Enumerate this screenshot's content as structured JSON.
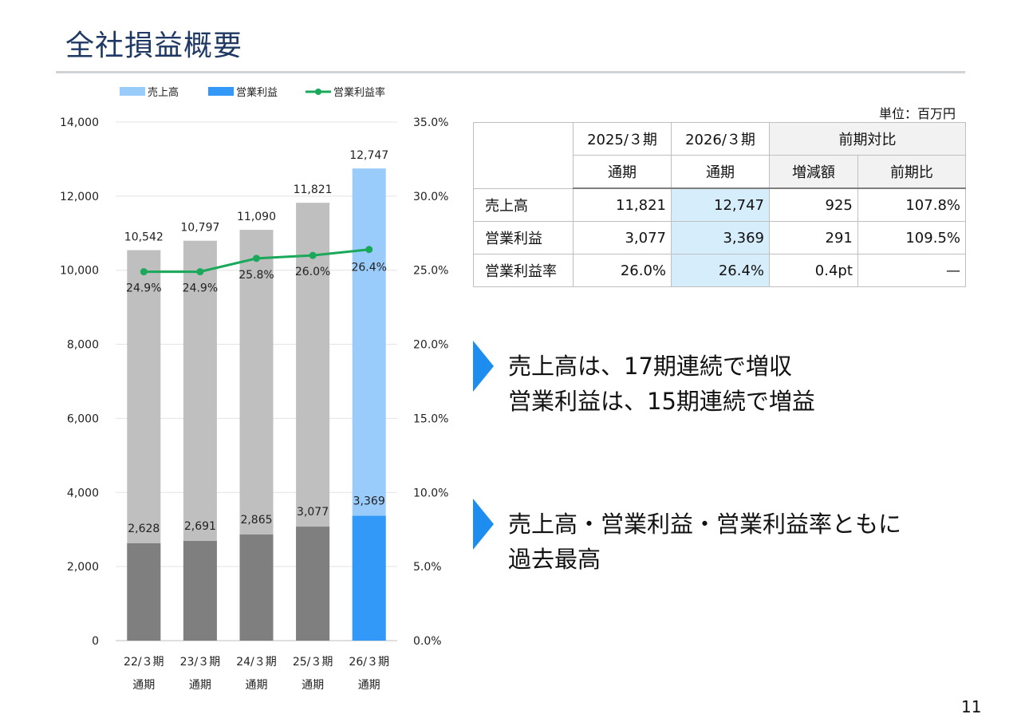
{
  "page": {
    "title": "全社損益概要",
    "page_number": "11"
  },
  "colors": {
    "title": "#1f3864",
    "revenue_past": "#bfbfbf",
    "op_income_past": "#7f7f7f",
    "revenue_current": "#99ccfa",
    "op_income_current": "#3399f8",
    "margin_line": "#1aa85a",
    "arrow": "#1e8df0",
    "highlight_cell": "#d6edfb"
  },
  "chart_data": {
    "type": "bar",
    "legend": [
      "売上高",
      "営業利益",
      "営業利益率"
    ],
    "legend_position": "top",
    "categories": [
      "22/３期",
      "23/３期",
      "24/３期",
      "25/３期",
      "26/３期"
    ],
    "category_sub": [
      "通期",
      "通期",
      "通期",
      "通期",
      "通期"
    ],
    "series": [
      {
        "name": "売上高",
        "values": [
          10542,
          10797,
          11090,
          11821,
          12747
        ],
        "labels": [
          "10,542",
          "10,797",
          "11,090",
          "11,821",
          "12,747"
        ]
      },
      {
        "name": "営業利益",
        "values": [
          2628,
          2691,
          2865,
          3077,
          3369
        ],
        "labels": [
          "2,628",
          "2,691",
          "2,865",
          "3,077",
          "3,369"
        ]
      },
      {
        "name": "営業利益率",
        "type": "line",
        "axis": "right",
        "values": [
          24.9,
          24.9,
          25.8,
          26.0,
          26.4
        ],
        "labels": [
          "24.9%",
          "24.9%",
          "25.8%",
          "26.0%",
          "26.4%"
        ]
      }
    ],
    "highlight_index": 4,
    "ylim": [
      0,
      14000
    ],
    "y_ticks": [
      "0",
      "2,000",
      "4,000",
      "6,000",
      "8,000",
      "10,000",
      "12,000",
      "14,000"
    ],
    "y2lim": [
      0,
      35
    ],
    "y2_ticks": [
      "0.0%",
      "5.0%",
      "10.0%",
      "15.0%",
      "20.0%",
      "25.0%",
      "30.0%",
      "35.0%"
    ],
    "grid": true
  },
  "table": {
    "unit": "単位：百万円",
    "headers": [
      "2025/３期",
      "2026/３期",
      "前期対比"
    ],
    "subheaders": [
      "通期",
      "通期",
      "増減額",
      "前期比"
    ],
    "rows": [
      {
        "label": "売上高",
        "prev": "11,821",
        "curr": "12,747",
        "diff": "925",
        "ratio": "107.8%"
      },
      {
        "label": "営業利益",
        "prev": "3,077",
        "curr": "3,369",
        "diff": "291",
        "ratio": "109.5%"
      },
      {
        "label": "営業利益率",
        "prev": "26.0%",
        "curr": "26.4%",
        "diff": "0.4pt",
        "ratio": "—"
      }
    ]
  },
  "points": [
    {
      "line1": "売上高は、17期連続で増収",
      "line2": "営業利益は、15期連続で増益"
    },
    {
      "line1": "売上高・営業利益・営業利益率ともに",
      "line2": "過去最高"
    }
  ]
}
